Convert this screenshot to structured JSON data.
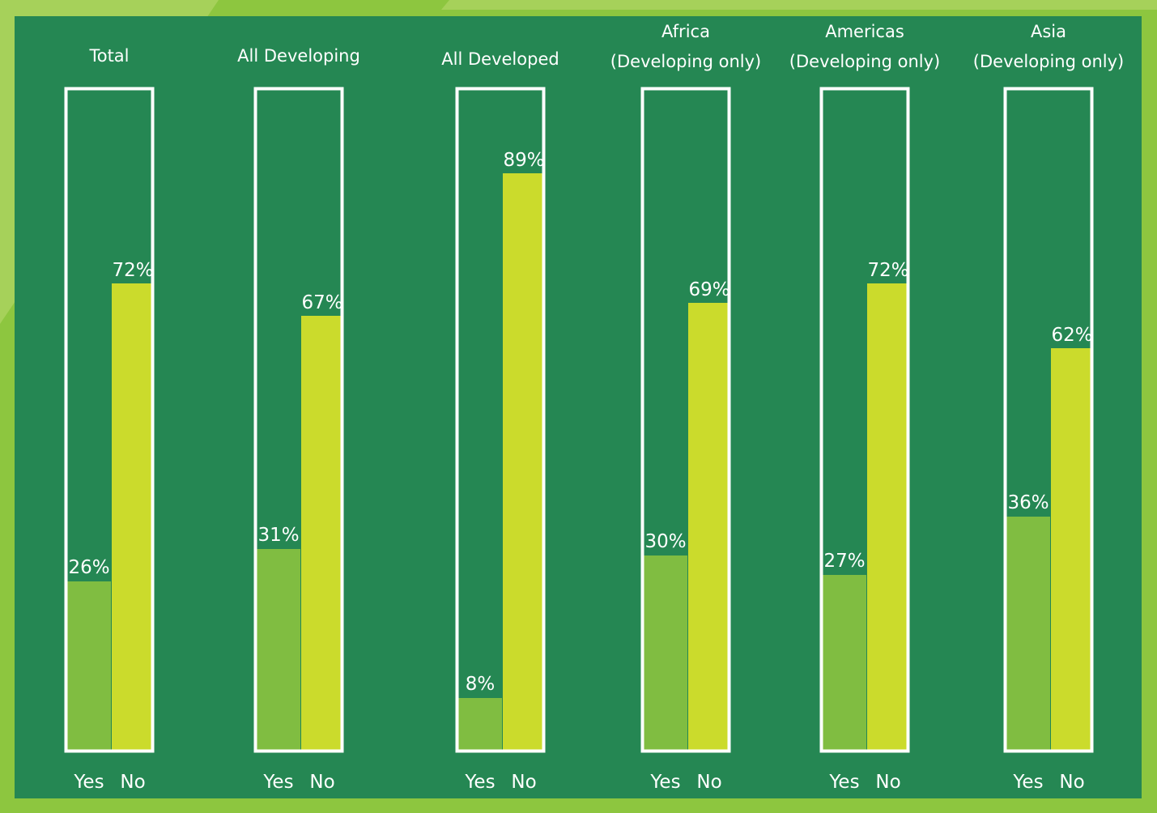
{
  "chart_data": {
    "type": "bar",
    "ylim": [
      0,
      100
    ],
    "categories": [
      "Yes",
      "No"
    ],
    "colors": {
      "background": "#258753",
      "frame": "#8dc63f",
      "yes": "#80bd41",
      "no": "#cbdb2c",
      "outline": "#ffffff",
      "text": "#ffffff"
    },
    "groups": [
      {
        "title_lines": [
          "Total"
        ],
        "yes": 26,
        "no": 72,
        "yes_label": "26%",
        "no_label": "72%"
      },
      {
        "title_lines": [
          "All Developing"
        ],
        "yes": 31,
        "no": 67,
        "yes_label": "31%",
        "no_label": "67%"
      },
      {
        "title_lines": [
          "All Developed"
        ],
        "yes": 8,
        "no": 89,
        "yes_label": "8%",
        "no_label": "89%"
      },
      {
        "title_lines": [
          "Africa",
          "(Developing only)"
        ],
        "yes": 30,
        "no": 69,
        "yes_label": "30%",
        "no_label": "69%"
      },
      {
        "title_lines": [
          "Americas",
          "(Developing only)"
        ],
        "yes": 27,
        "no": 72,
        "yes_label": "27%",
        "no_label": "72%"
      },
      {
        "title_lines": [
          "Asia",
          "(Developing only)"
        ],
        "yes": 36,
        "no": 62,
        "yes_label": "36%",
        "no_label": "62%"
      }
    ]
  }
}
